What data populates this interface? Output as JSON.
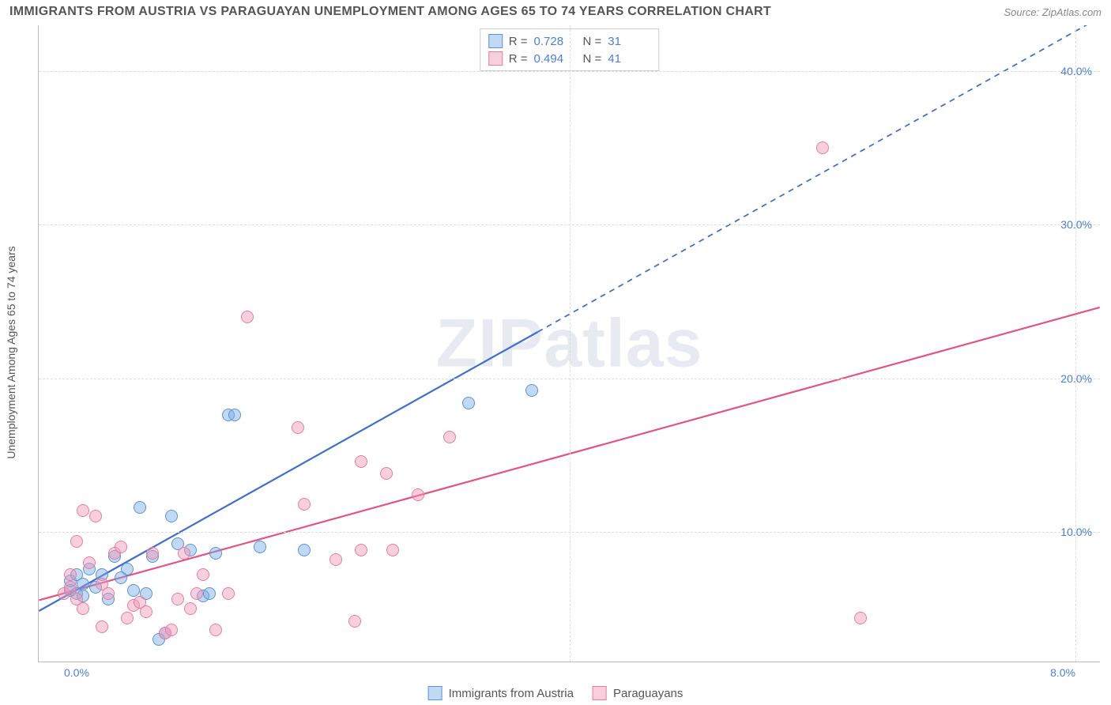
{
  "header": {
    "title": "IMMIGRANTS FROM AUSTRIA VS PARAGUAYAN UNEMPLOYMENT AMONG AGES 65 TO 74 YEARS CORRELATION CHART",
    "source": "Source: ZipAtlas.com"
  },
  "watermark": "ZIPatlas",
  "chart": {
    "type": "scatter",
    "y_axis_label": "Unemployment Among Ages 65 to 74 years",
    "x_range": [
      -0.2,
      8.2
    ],
    "y_range": [
      1.5,
      43.0
    ],
    "x_ticks": [
      0.0,
      4.0,
      8.0
    ],
    "x_tick_labels": [
      "0.0%",
      "",
      "8.0%"
    ],
    "y_ticks": [
      10.0,
      20.0,
      30.0,
      40.0
    ],
    "y_tick_labels": [
      "10.0%",
      "20.0%",
      "30.0%",
      "40.0%"
    ],
    "grid_vlines": [
      4.0,
      8.0
    ],
    "background_color": "#ffffff",
    "grid_color": "#dddddd",
    "axis_color": "#bbbbbb",
    "tick_label_color": "#4a7fd6",
    "watermark_color": "rgba(120,140,170,0.18)",
    "series": [
      {
        "id": "austria",
        "label": "Immigrants from Austria",
        "color_fill": "rgba(120,170,230,0.45)",
        "color_border": "#5b93d6",
        "r_value": "0.728",
        "n_value": "31",
        "trend": {
          "x0": -0.2,
          "y0": 4.8,
          "x1": 3.75,
          "y1": 23.0,
          "x2": 8.2,
          "y2": 43.5,
          "solid_until_x": 3.75,
          "stroke": "#3f6fc7",
          "width": 2.2
        },
        "points": [
          [
            0.05,
            6.2
          ],
          [
            0.05,
            6.8
          ],
          [
            0.1,
            6.0
          ],
          [
            0.1,
            7.2
          ],
          [
            0.15,
            5.8
          ],
          [
            0.15,
            6.6
          ],
          [
            0.2,
            7.6
          ],
          [
            0.25,
            6.4
          ],
          [
            0.3,
            7.2
          ],
          [
            0.35,
            5.6
          ],
          [
            0.4,
            8.4
          ],
          [
            0.5,
            7.6
          ],
          [
            0.55,
            6.2
          ],
          [
            0.6,
            11.6
          ],
          [
            0.65,
            6.0
          ],
          [
            0.7,
            8.4
          ],
          [
            0.75,
            3.0
          ],
          [
            0.8,
            3.4
          ],
          [
            0.85,
            11.0
          ],
          [
            0.9,
            9.2
          ],
          [
            1.0,
            8.8
          ],
          [
            1.1,
            5.8
          ],
          [
            1.15,
            6.0
          ],
          [
            1.2,
            8.6
          ],
          [
            1.3,
            17.6
          ],
          [
            1.35,
            17.6
          ],
          [
            1.55,
            9.0
          ],
          [
            1.9,
            8.8
          ],
          [
            3.2,
            18.4
          ],
          [
            3.7,
            19.2
          ],
          [
            0.45,
            7.0
          ]
        ]
      },
      {
        "id": "paraguayans",
        "label": "Paraguayans",
        "color_fill": "rgba(240,150,180,0.45)",
        "color_border": "#e67ca3",
        "r_value": "0.494",
        "n_value": "41",
        "trend": {
          "x0": -0.2,
          "y0": 5.5,
          "x1": 8.2,
          "y1": 24.6,
          "solid_until_x": 8.2,
          "stroke": "#e05486",
          "width": 2.2
        },
        "points": [
          [
            0.0,
            6.0
          ],
          [
            0.05,
            6.4
          ],
          [
            0.05,
            7.2
          ],
          [
            0.1,
            9.4
          ],
          [
            0.1,
            5.6
          ],
          [
            0.15,
            11.4
          ],
          [
            0.15,
            5.0
          ],
          [
            0.2,
            8.0
          ],
          [
            0.25,
            11.0
          ],
          [
            0.3,
            6.6
          ],
          [
            0.3,
            3.8
          ],
          [
            0.35,
            6.0
          ],
          [
            0.4,
            8.6
          ],
          [
            0.45,
            9.0
          ],
          [
            0.5,
            4.4
          ],
          [
            0.55,
            5.2
          ],
          [
            0.6,
            5.4
          ],
          [
            0.65,
            4.8
          ],
          [
            0.7,
            8.6
          ],
          [
            0.8,
            3.4
          ],
          [
            0.85,
            3.6
          ],
          [
            0.9,
            5.6
          ],
          [
            0.95,
            8.6
          ],
          [
            1.0,
            5.0
          ],
          [
            1.05,
            6.0
          ],
          [
            1.1,
            7.2
          ],
          [
            1.2,
            3.6
          ],
          [
            1.3,
            6.0
          ],
          [
            1.45,
            24.0
          ],
          [
            1.85,
            16.8
          ],
          [
            1.9,
            11.8
          ],
          [
            2.15,
            8.2
          ],
          [
            2.3,
            4.2
          ],
          [
            2.35,
            14.6
          ],
          [
            2.35,
            8.8
          ],
          [
            2.55,
            13.8
          ],
          [
            2.6,
            8.8
          ],
          [
            2.8,
            12.4
          ],
          [
            3.05,
            16.2
          ],
          [
            6.0,
            35.0
          ],
          [
            6.3,
            4.4
          ]
        ]
      }
    ],
    "corr_legend": {
      "r_label": "R =",
      "n_label": "N ="
    }
  }
}
